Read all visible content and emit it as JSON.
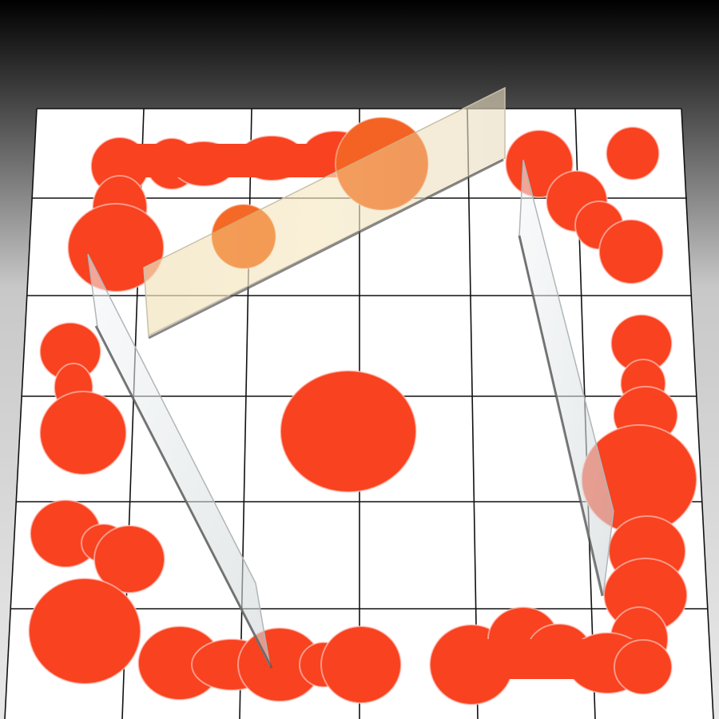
{
  "scene": {
    "grid": {
      "rows": 6,
      "cols": 6
    },
    "colors": {
      "sky_top": "#000000",
      "sky_bottom": "#e6e6e6",
      "tile": "#ffffff",
      "grid_line": "#111111",
      "blob": "#f84220",
      "glass": "#e8eef0",
      "glass_wood": "#f4e2b0"
    },
    "blobs": [
      {
        "name": "blob-top-left-corner",
        "shape": "chain"
      },
      {
        "name": "blob-top-mid-small",
        "shape": "disc"
      },
      {
        "name": "blob-top-right-chain",
        "shape": "chain"
      },
      {
        "name": "blob-top-right-dot",
        "shape": "disc"
      },
      {
        "name": "blob-left-column",
        "shape": "chain"
      },
      {
        "name": "blob-center",
        "shape": "disc"
      },
      {
        "name": "blob-right-column",
        "shape": "chain"
      },
      {
        "name": "blob-bottom-left",
        "shape": "chain"
      },
      {
        "name": "blob-bottom-left-big",
        "shape": "disc"
      },
      {
        "name": "blob-bottom-mid",
        "shape": "chain"
      },
      {
        "name": "blob-bottom-right-corner",
        "shape": "chain"
      }
    ],
    "panels": [
      {
        "name": "glass-panel-top",
        "material": "wood"
      },
      {
        "name": "glass-panel-left",
        "material": "glass"
      },
      {
        "name": "glass-panel-right",
        "material": "glass"
      }
    ]
  }
}
